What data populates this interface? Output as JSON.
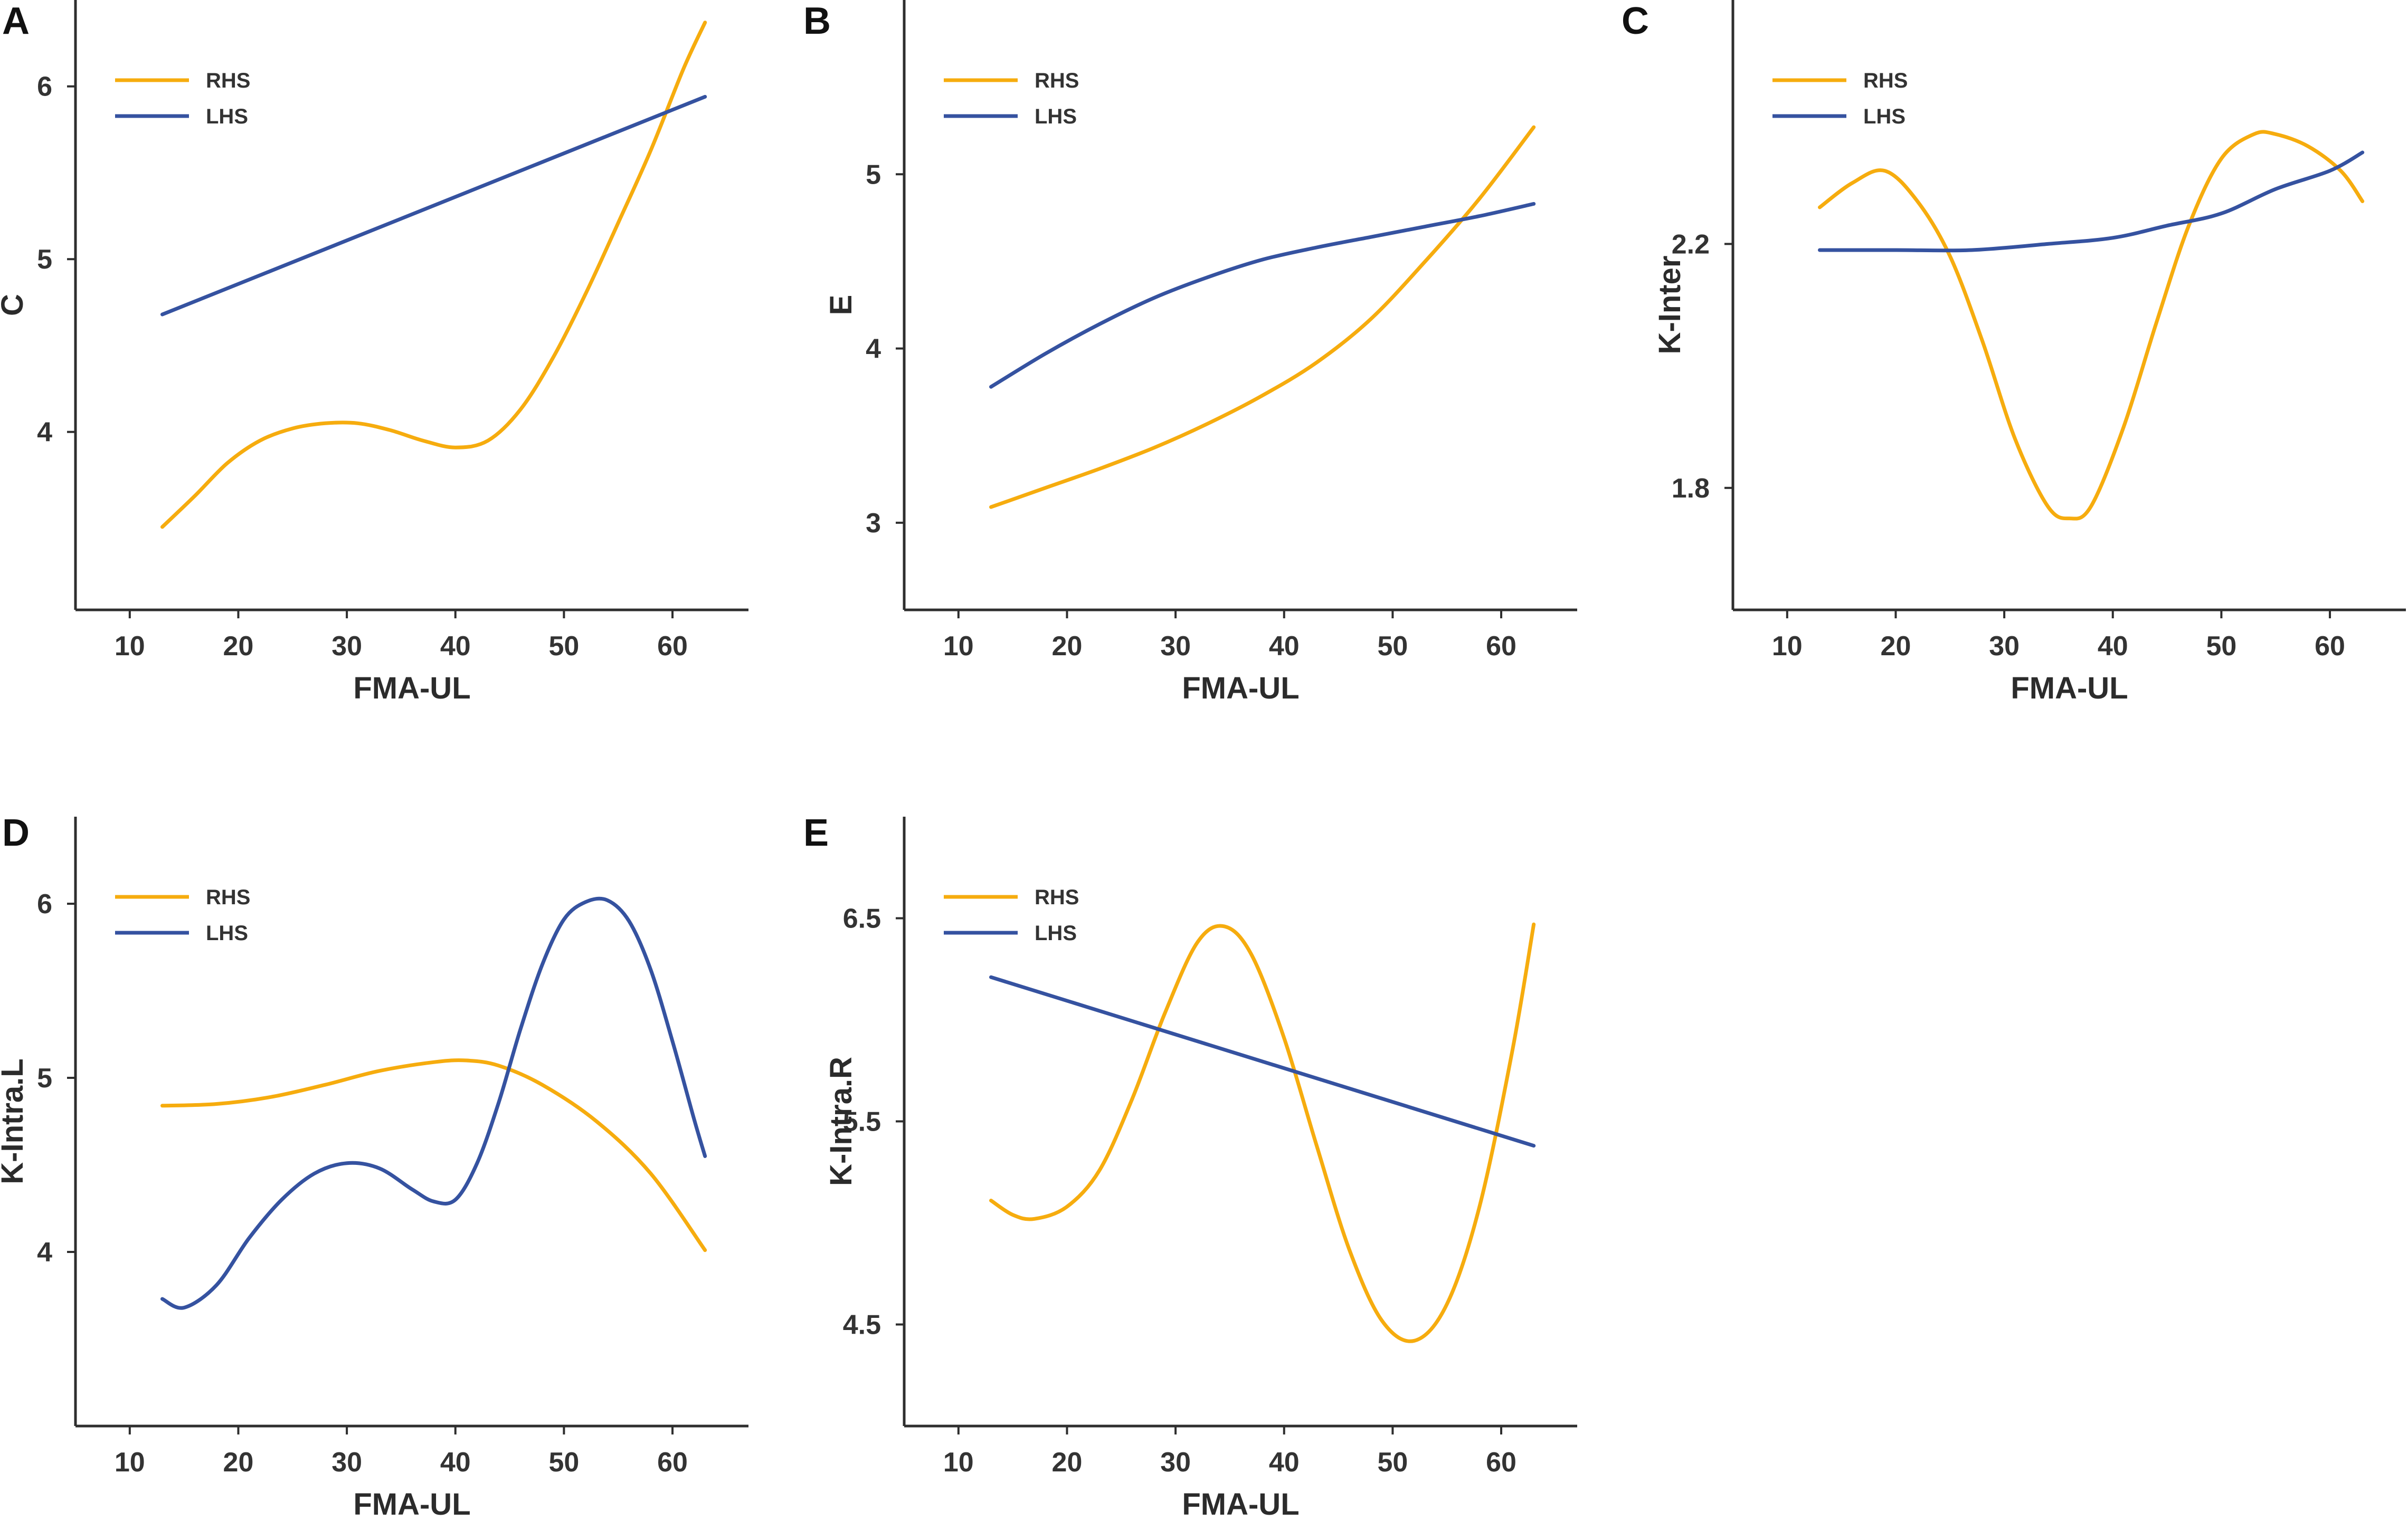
{
  "colors": {
    "RHS": "#f6ac0e",
    "LHS": "#3552a0",
    "axis": "#2e2e2e"
  },
  "chart_data": [
    {
      "type": "line",
      "panel_label": "A",
      "xlabel": "FMA-UL",
      "ylabel": "C",
      "xlim": [
        5,
        67
      ],
      "ylim": [
        2.97,
        6.5
      ],
      "xticks": [
        10,
        20,
        30,
        40,
        50,
        60
      ],
      "yticks": [
        4,
        5,
        6
      ],
      "legend": {
        "position": "top-left",
        "entries": [
          "RHS",
          "LHS"
        ]
      },
      "series": [
        {
          "name": "RHS",
          "x": [
            13,
            16,
            19,
            22,
            25,
            28,
            31,
            34,
            37,
            40,
            43,
            46,
            49,
            52,
            55,
            58,
            61,
            63
          ],
          "y": [
            3.45,
            3.63,
            3.82,
            3.95,
            4.02,
            4.05,
            4.05,
            4.01,
            3.95,
            3.91,
            3.95,
            4.13,
            4.43,
            4.8,
            5.21,
            5.63,
            6.1,
            6.37
          ]
        },
        {
          "name": "LHS",
          "x": [
            13,
            63
          ],
          "y": [
            4.68,
            5.94
          ]
        }
      ]
    },
    {
      "type": "line",
      "panel_label": "B",
      "xlabel": "FMA-UL",
      "ylabel": "E",
      "xlim": [
        5,
        67
      ],
      "ylim": [
        2.5,
        6.0
      ],
      "xticks": [
        10,
        20,
        30,
        40,
        50,
        60
      ],
      "yticks": [
        3,
        4,
        5
      ],
      "legend": {
        "position": "top-left",
        "entries": [
          "RHS",
          "LHS"
        ]
      },
      "series": [
        {
          "name": "RHS",
          "x": [
            13,
            18,
            23,
            28,
            33,
            38,
            43,
            48,
            53,
            58,
            63
          ],
          "y": [
            3.09,
            3.2,
            3.31,
            3.43,
            3.57,
            3.73,
            3.92,
            4.17,
            4.5,
            4.86,
            5.27
          ]
        },
        {
          "name": "LHS",
          "x": [
            13,
            18,
            23,
            28,
            33,
            38,
            43,
            48,
            53,
            58,
            63
          ],
          "y": [
            3.78,
            3.97,
            4.14,
            4.29,
            4.41,
            4.51,
            4.58,
            4.64,
            4.7,
            4.76,
            4.83
          ]
        }
      ]
    },
    {
      "type": "line",
      "panel_label": "C",
      "xlabel": "FMA-UL",
      "ylabel": "K-Inter",
      "xlim": [
        5,
        67
      ],
      "ylim": [
        1.6,
        2.6
      ],
      "xticks": [
        10,
        20,
        30,
        40,
        50,
        60
      ],
      "yticks": [
        1.8,
        2.2
      ],
      "legend": {
        "position": "top-left",
        "entries": [
          "RHS",
          "LHS"
        ]
      },
      "series": [
        {
          "name": "RHS",
          "x": [
            13,
            16,
            19,
            22,
            25,
            28,
            31,
            34,
            36,
            38,
            41,
            44,
            47,
            50,
            53,
            55,
            58,
            61,
            63
          ],
          "y": [
            2.26,
            2.3,
            2.32,
            2.27,
            2.18,
            2.04,
            1.88,
            1.77,
            1.75,
            1.77,
            1.9,
            2.07,
            2.23,
            2.34,
            2.38,
            2.38,
            2.36,
            2.32,
            2.27
          ]
        },
        {
          "name": "LHS",
          "x": [
            13,
            20,
            27,
            34,
            40,
            45,
            50,
            55,
            60,
            63
          ],
          "y": [
            2.19,
            2.19,
            2.19,
            2.2,
            2.21,
            2.23,
            2.25,
            2.29,
            2.32,
            2.35
          ]
        }
      ]
    },
    {
      "type": "line",
      "panel_label": "D",
      "xlabel": "FMA-UL",
      "ylabel": "K-Intra.L",
      "xlim": [
        5,
        67
      ],
      "ylim": [
        3.0,
        6.5
      ],
      "xticks": [
        10,
        20,
        30,
        40,
        50,
        60
      ],
      "yticks": [
        4,
        5,
        6
      ],
      "legend": {
        "position": "top-left",
        "entries": [
          "RHS",
          "LHS"
        ]
      },
      "series": [
        {
          "name": "RHS",
          "x": [
            13,
            18,
            23,
            28,
            33,
            38,
            41,
            44,
            48,
            53,
            58,
            63
          ],
          "y": [
            4.84,
            4.85,
            4.89,
            4.96,
            5.04,
            5.09,
            5.1,
            5.07,
            4.96,
            4.75,
            4.45,
            4.01
          ]
        },
        {
          "name": "LHS",
          "x": [
            13,
            15,
            18,
            21,
            24,
            27,
            30,
            33,
            36,
            38,
            40,
            42,
            44,
            46,
            48,
            50,
            52,
            54,
            56,
            58,
            60,
            62,
            63
          ],
          "y": [
            3.73,
            3.68,
            3.81,
            4.08,
            4.3,
            4.45,
            4.51,
            4.48,
            4.36,
            4.29,
            4.3,
            4.51,
            4.86,
            5.28,
            5.65,
            5.91,
            6.01,
            6.02,
            5.9,
            5.62,
            5.21,
            4.76,
            4.55
          ]
        }
      ]
    },
    {
      "type": "line",
      "panel_label": "E",
      "xlabel": "FMA-UL",
      "ylabel": "K-Intra.R",
      "xlim": [
        5,
        67
      ],
      "ylim": [
        4.0,
        7.0
      ],
      "xticks": [
        10,
        20,
        30,
        40,
        50,
        60
      ],
      "yticks": [
        4.5,
        5.5,
        6.5
      ],
      "legend": {
        "position": "top-left",
        "entries": [
          "RHS",
          "LHS"
        ]
      },
      "series": [
        {
          "name": "RHS",
          "x": [
            13,
            15,
            17,
            20,
            23,
            26,
            29,
            32,
            34.5,
            37,
            40,
            43,
            46,
            49,
            52,
            55,
            58,
            61,
            63
          ],
          "y": [
            5.11,
            5.04,
            5.02,
            5.08,
            5.26,
            5.61,
            6.03,
            6.38,
            6.46,
            6.32,
            5.91,
            5.38,
            4.87,
            4.52,
            4.42,
            4.6,
            5.08,
            5.84,
            6.47
          ]
        },
        {
          "name": "LHS",
          "x": [
            13,
            63
          ],
          "y": [
            6.21,
            5.38
          ]
        }
      ]
    }
  ]
}
